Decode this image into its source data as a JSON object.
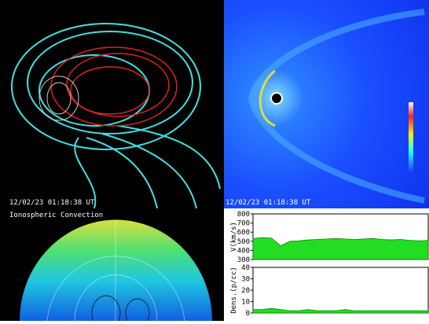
{
  "panels": {
    "field_lines": {
      "timestamp": "12/02/23 01:18:38 UT"
    },
    "pressure": {
      "timestamp": "12/02/23 01:18:38 UT"
    },
    "ionosphere": {
      "title": "Ionospheric Convection"
    }
  },
  "chart_data": [
    {
      "type": "area",
      "y_label": "V(km/s)",
      "color": "#22dd22",
      "values": [
        530,
        540,
        535,
        450,
        500,
        505,
        515,
        520,
        525,
        530,
        525,
        520,
        525,
        530,
        520,
        515,
        520,
        510,
        505,
        510
      ],
      "ylim": [
        300,
        800
      ],
      "yticks": [
        300,
        400,
        500,
        600,
        700,
        800
      ]
    },
    {
      "type": "area",
      "y_label": "Dens.(p/cc)",
      "color": "#22dd22",
      "values": [
        3,
        3,
        4,
        3,
        2,
        2,
        3,
        2,
        2,
        2,
        3,
        2,
        2,
        2,
        2,
        2,
        2,
        2,
        2,
        2
      ],
      "ylim": [
        0,
        40
      ],
      "yticks": [
        0,
        10,
        20,
        30,
        40
      ]
    }
  ]
}
